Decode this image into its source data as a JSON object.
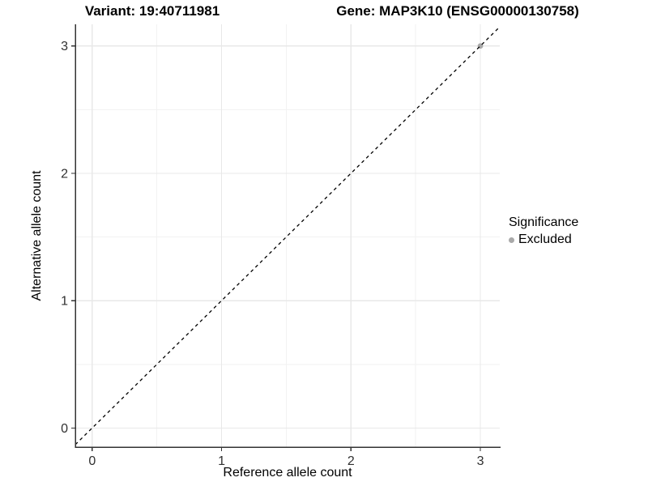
{
  "chart_data": {
    "type": "scatter",
    "title_left": "Variant: 19:40711981",
    "title_right": "Gene: MAP3K10 (ENSG00000130758)",
    "xlabel": "Reference allele count",
    "ylabel": "Alternative allele count",
    "xlim": [
      -0.13,
      3.15
    ],
    "ylim": [
      -0.15,
      3.17
    ],
    "xticks": [
      0,
      1,
      2,
      3
    ],
    "yticks": [
      0,
      1,
      2,
      3
    ],
    "xticks_minor": [
      0.5,
      1.5,
      2.5
    ],
    "yticks_minor": [
      0.5,
      1.5,
      2.5
    ],
    "grid": true,
    "points": [
      {
        "x": 3,
        "y": 3,
        "series": "Excluded"
      }
    ],
    "identity_line": {
      "style": "dashed",
      "from": [
        -0.13,
        -0.13
      ],
      "to": [
        3.15,
        3.15
      ]
    },
    "legend": {
      "title": "Significance",
      "position": "right",
      "entries": [
        {
          "label": "Excluded",
          "color": "#A9A9A9"
        }
      ]
    },
    "colors": {
      "point": "#A9A9A9",
      "identity_line": "#000000",
      "grid_major": "#e8e8e8",
      "grid_minor": "#f2f2f2",
      "axis_line": "#333333",
      "tick_mark": "#333333",
      "tick_label": "#303030",
      "text": "#000000",
      "background": "#ffffff"
    }
  }
}
